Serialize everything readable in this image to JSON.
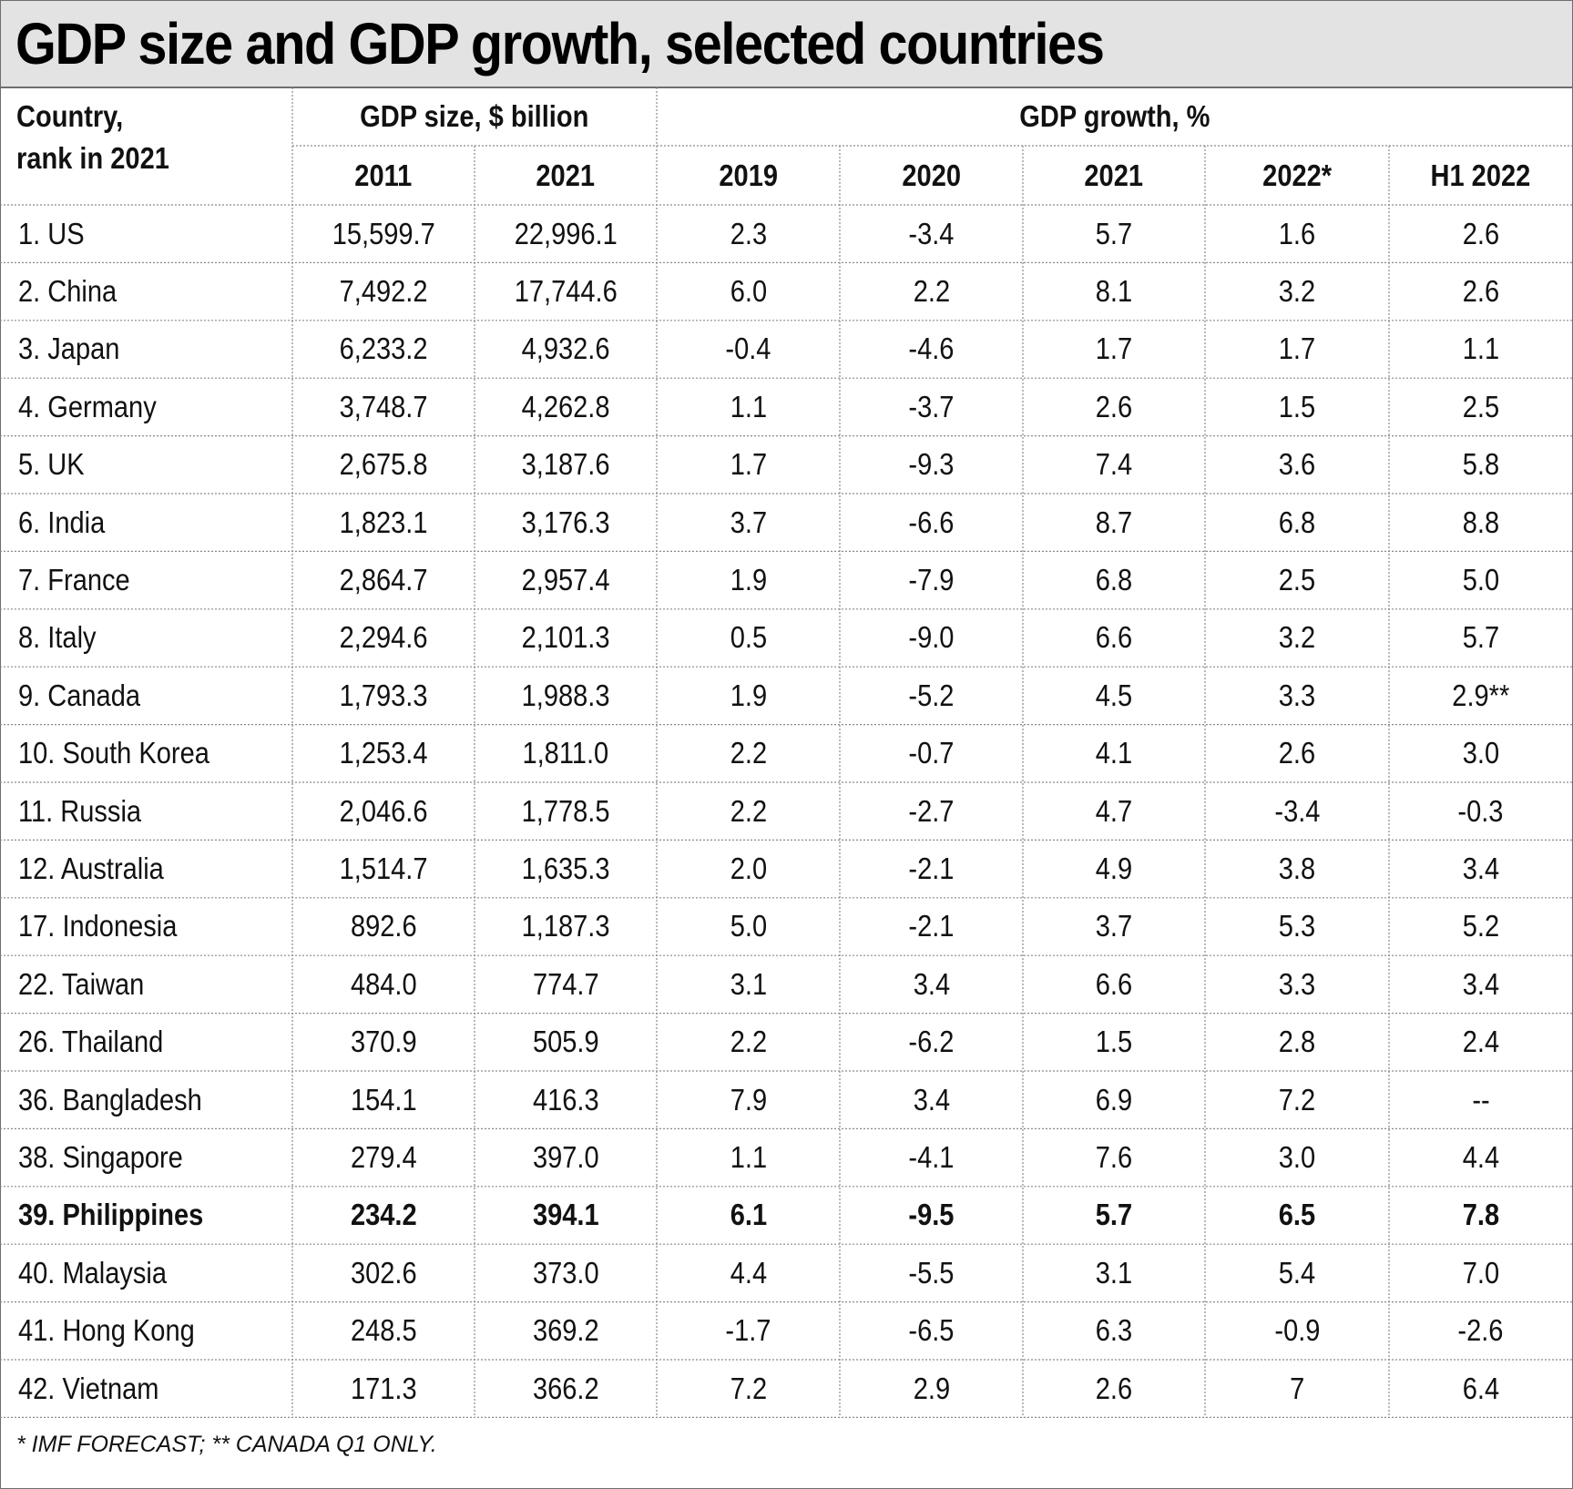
{
  "title": "GDP size and GDP growth, selected countries",
  "footnote": "* IMF FORECAST; ** CANADA Q1 ONLY.",
  "chart_data": {
    "type": "table",
    "title": "GDP size and GDP growth, selected countries",
    "header_groups": [
      {
        "label": "Country, rank in 2021",
        "span": 1
      },
      {
        "label": "GDP size, $ billion",
        "span": 2
      },
      {
        "label": "GDP growth, %",
        "span": 5
      }
    ],
    "country_header": "Country,\nrank in 2021",
    "columns": [
      "2011",
      "2021",
      "2019",
      "2020",
      "2021",
      "2022*",
      "H1 2022"
    ],
    "rows": [
      {
        "country": "1. US",
        "values": [
          "15,599.7",
          "22,996.1",
          "2.3",
          "-3.4",
          "5.7",
          "1.6",
          "2.6"
        ]
      },
      {
        "country": "2. China",
        "values": [
          "7,492.2",
          "17,744.6",
          "6.0",
          "2.2",
          "8.1",
          "3.2",
          "2.6"
        ]
      },
      {
        "country": "3. Japan",
        "values": [
          "6,233.2",
          "4,932.6",
          "-0.4",
          "-4.6",
          "1.7",
          "1.7",
          "1.1"
        ]
      },
      {
        "country": "4. Germany",
        "values": [
          "3,748.7",
          "4,262.8",
          "1.1",
          "-3.7",
          "2.6",
          "1.5",
          "2.5"
        ]
      },
      {
        "country": "5. UK",
        "values": [
          "2,675.8",
          "3,187.6",
          "1.7",
          "-9.3",
          "7.4",
          "3.6",
          "5.8"
        ]
      },
      {
        "country": "6. India",
        "values": [
          "1,823.1",
          "3,176.3",
          "3.7",
          "-6.6",
          "8.7",
          "6.8",
          "8.8"
        ]
      },
      {
        "country": "7. France",
        "values": [
          "2,864.7",
          "2,957.4",
          "1.9",
          "-7.9",
          "6.8",
          "2.5",
          "5.0"
        ]
      },
      {
        "country": "8. Italy",
        "values": [
          "2,294.6",
          "2,101.3",
          "0.5",
          "-9.0",
          "6.6",
          "3.2",
          "5.7"
        ]
      },
      {
        "country": "9. Canada",
        "values": [
          "1,793.3",
          "1,988.3",
          "1.9",
          "-5.2",
          "4.5",
          "3.3",
          "2.9**"
        ]
      },
      {
        "country": "10. South Korea",
        "values": [
          "1,253.4",
          "1,811.0",
          "2.2",
          "-0.7",
          "4.1",
          "2.6",
          "3.0"
        ]
      },
      {
        "country": "11. Russia",
        "values": [
          "2,046.6",
          "1,778.5",
          "2.2",
          "-2.7",
          "4.7",
          "-3.4",
          "-0.3"
        ]
      },
      {
        "country": "12. Australia",
        "values": [
          "1,514.7",
          "1,635.3",
          "2.0",
          "-2.1",
          "4.9",
          "3.8",
          "3.4"
        ]
      },
      {
        "country": "17. Indonesia",
        "values": [
          "892.6",
          "1,187.3",
          "5.0",
          "-2.1",
          "3.7",
          "5.3",
          "5.2"
        ]
      },
      {
        "country": "22. Taiwan",
        "values": [
          "484.0",
          "774.7",
          "3.1",
          "3.4",
          "6.6",
          "3.3",
          "3.4"
        ]
      },
      {
        "country": "26. Thailand",
        "values": [
          "370.9",
          "505.9",
          "2.2",
          "-6.2",
          "1.5",
          "2.8",
          "2.4"
        ]
      },
      {
        "country": "36. Bangladesh",
        "values": [
          "154.1",
          "416.3",
          "7.9",
          "3.4",
          "6.9",
          "7.2",
          "--"
        ]
      },
      {
        "country": "38. Singapore",
        "values": [
          "279.4",
          "397.0",
          "1.1",
          "-4.1",
          "7.6",
          "3.0",
          "4.4"
        ]
      },
      {
        "country": "39. Philippines",
        "values": [
          "234.2",
          "394.1",
          "6.1",
          "-9.5",
          "5.7",
          "6.5",
          "7.8"
        ],
        "highlight": true
      },
      {
        "country": "40. Malaysia",
        "values": [
          "302.6",
          "373.0",
          "4.4",
          "-5.5",
          "3.1",
          "5.4",
          "7.0"
        ]
      },
      {
        "country": "41. Hong Kong",
        "values": [
          "248.5",
          "369.2",
          "-1.7",
          "-6.5",
          "6.3",
          "-0.9",
          "-2.6"
        ]
      },
      {
        "country": "42. Vietnam",
        "values": [
          "171.3",
          "366.2",
          "7.2",
          "2.9",
          "2.6",
          "7",
          "6.4"
        ]
      }
    ]
  }
}
